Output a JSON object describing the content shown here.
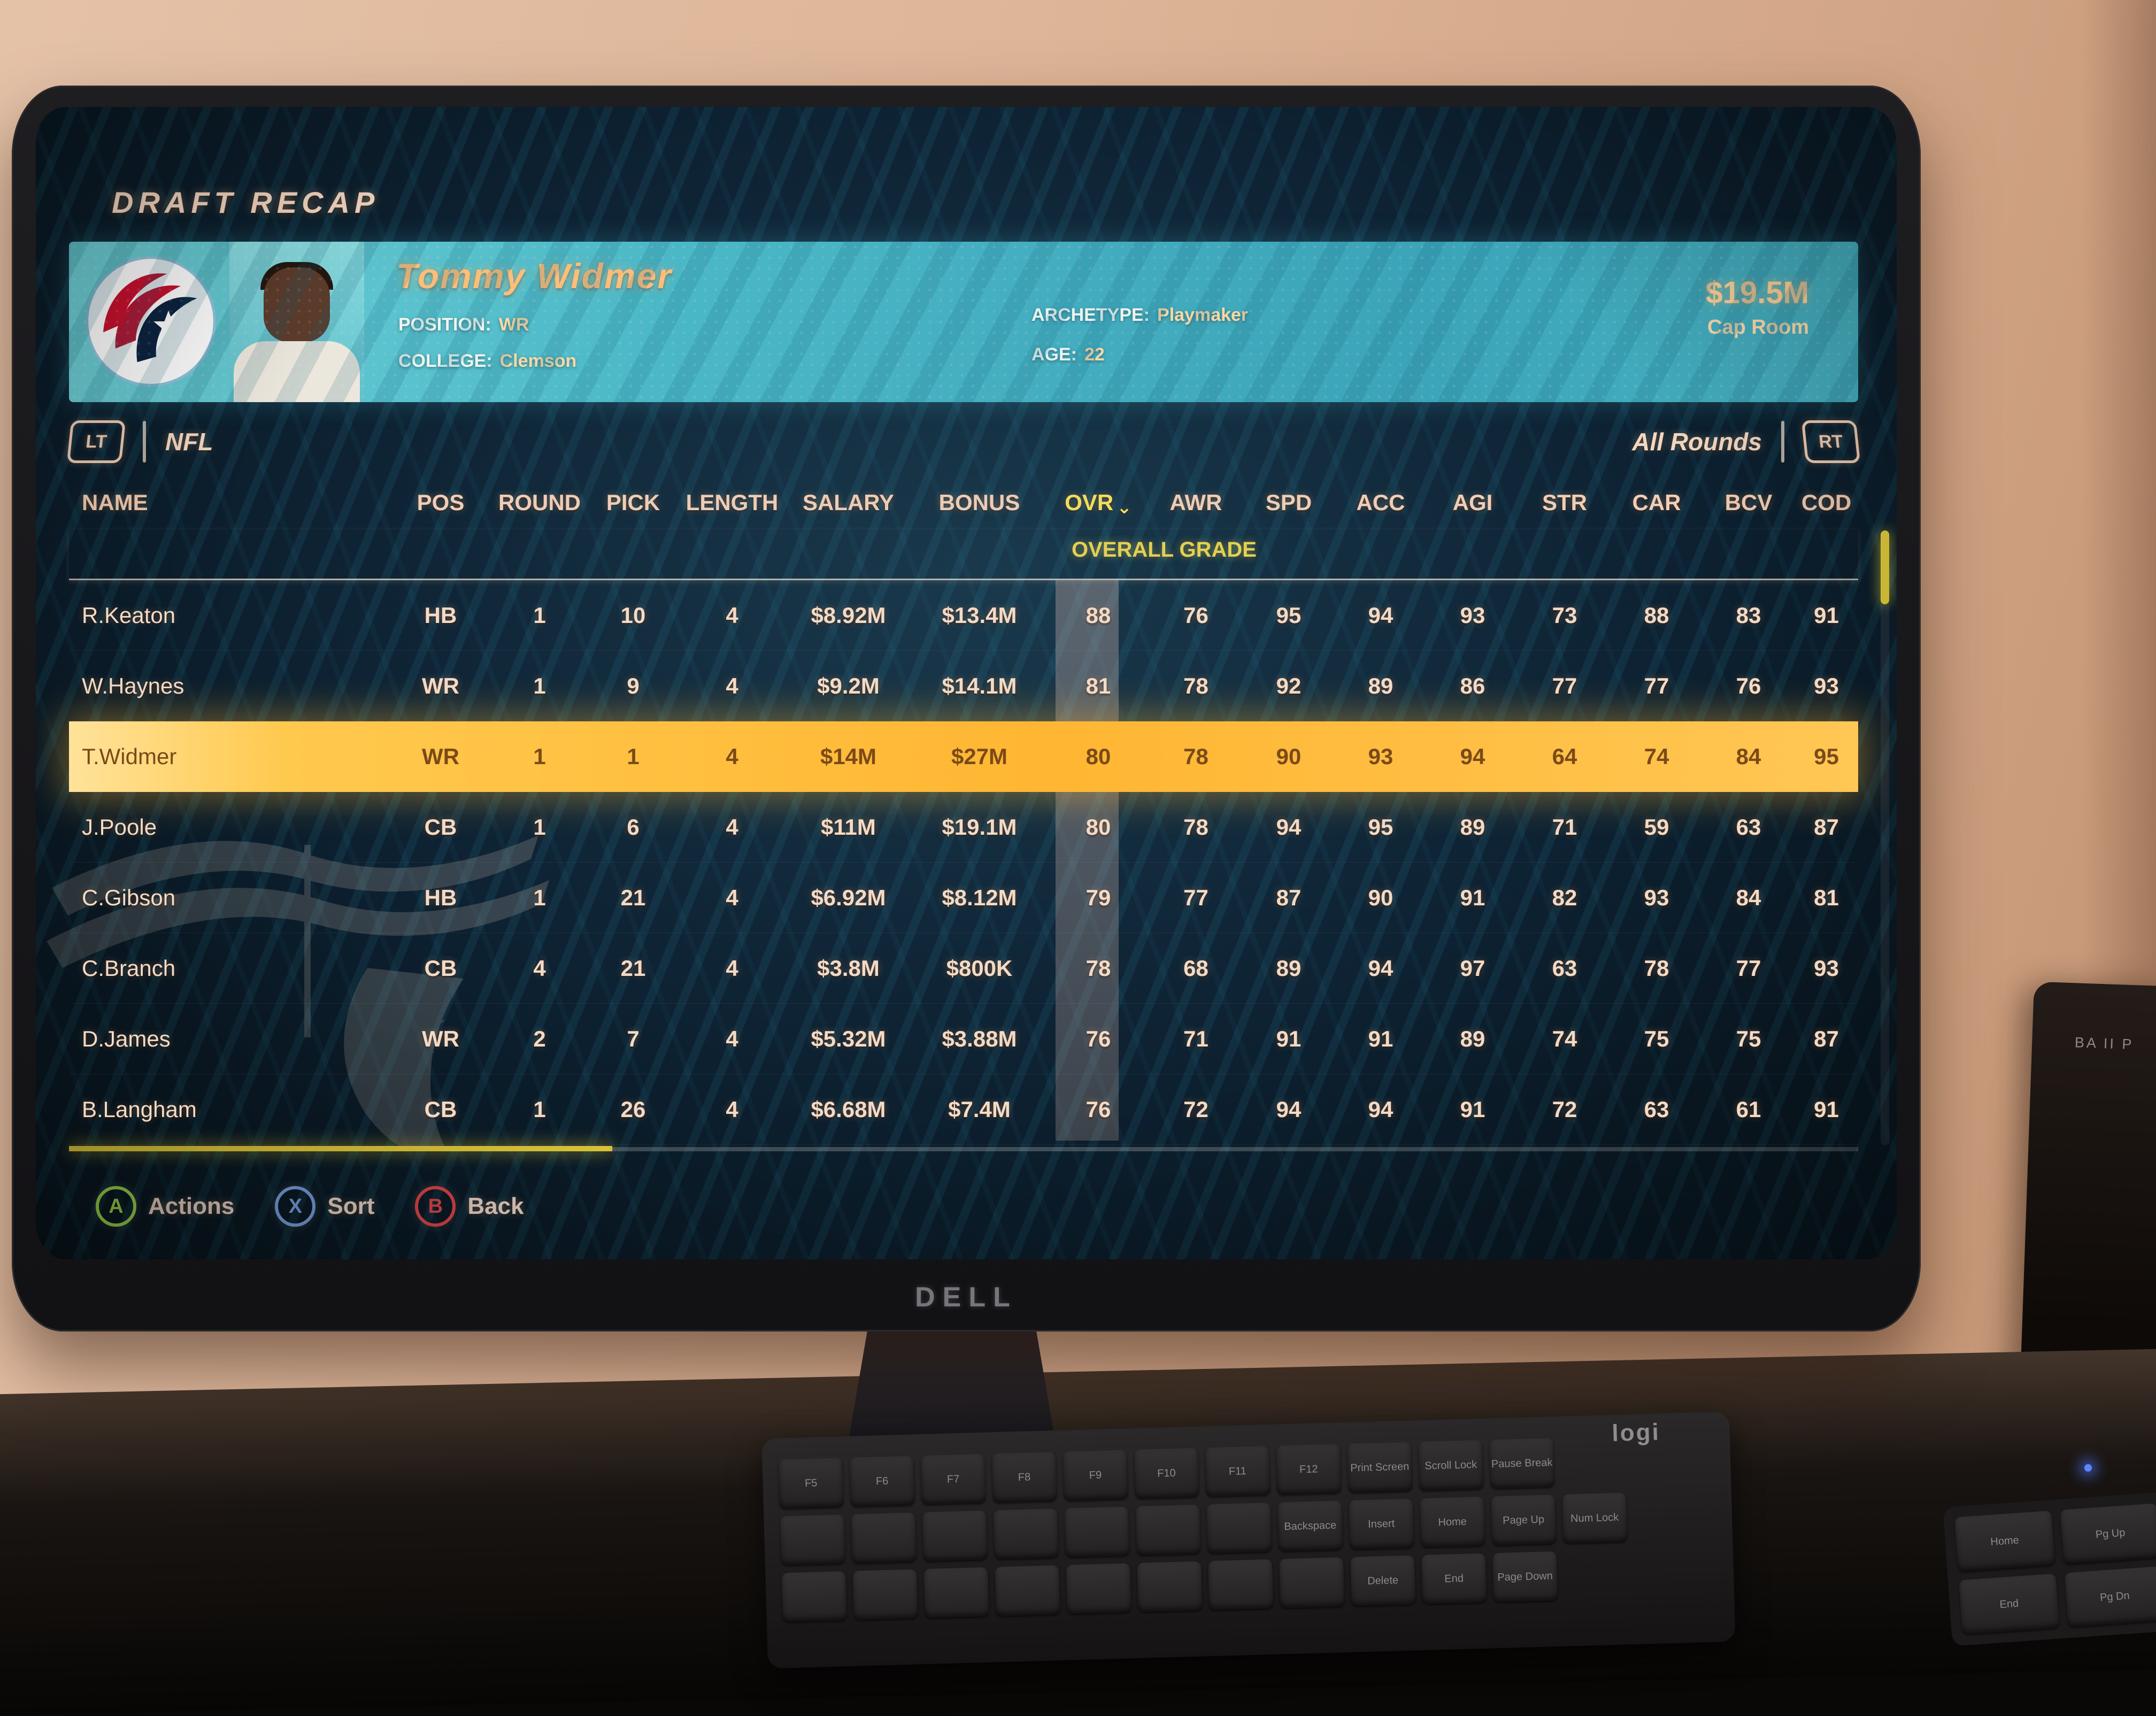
{
  "screen": {
    "title": "DRAFT RECAP",
    "player_banner": {
      "team_logo": "tennessee-titans-logo",
      "name": "Tommy Widmer",
      "position_label": "POSITION:",
      "position": "WR",
      "college_label": "COLLEGE:",
      "college": "Clemson",
      "archetype_label": "ARCHETYPE:",
      "archetype": "Playmaker",
      "age_label": "AGE:",
      "age": "22",
      "cap_room_value": "$19.5M",
      "cap_room_label": "Cap Room",
      "banner_color": "#49b7c6"
    },
    "tab_bar": {
      "left_bumper": "LT",
      "league_tab": "NFL",
      "rounds_filter": "All Rounds",
      "right_bumper": "RT"
    },
    "table": {
      "columns": [
        "NAME",
        "POS",
        "ROUND",
        "PICK",
        "LENGTH",
        "SALARY",
        "BONUS",
        "OVR",
        "AWR",
        "SPD",
        "ACC",
        "AGI",
        "STR",
        "CAR",
        "BCV",
        "COD"
      ],
      "sort_column": "OVR",
      "group_label": "OVERALL GRADE",
      "highlight_color": "#ffc043",
      "watermark": "new-england-patriots-logo",
      "rows": [
        {
          "name": "R.Keaton",
          "pos": "HB",
          "round": "1",
          "pick": "10",
          "length": "4",
          "salary": "$8.92M",
          "bonus": "$13.4M",
          "ovr": "88",
          "awr": "76",
          "spd": "95",
          "acc": "94",
          "agi": "93",
          "str": "73",
          "car": "88",
          "bcv": "83",
          "cod": "91",
          "selected": false
        },
        {
          "name": "W.Haynes",
          "pos": "WR",
          "round": "1",
          "pick": "9",
          "length": "4",
          "salary": "$9.2M",
          "bonus": "$14.1M",
          "ovr": "81",
          "awr": "78",
          "spd": "92",
          "acc": "89",
          "agi": "86",
          "str": "77",
          "car": "77",
          "bcv": "76",
          "cod": "93",
          "selected": false
        },
        {
          "name": "T.Widmer",
          "pos": "WR",
          "round": "1",
          "pick": "1",
          "length": "4",
          "salary": "$14M",
          "bonus": "$27M",
          "ovr": "80",
          "awr": "78",
          "spd": "90",
          "acc": "93",
          "agi": "94",
          "str": "64",
          "car": "74",
          "bcv": "84",
          "cod": "95",
          "selected": true
        },
        {
          "name": "J.Poole",
          "pos": "CB",
          "round": "1",
          "pick": "6",
          "length": "4",
          "salary": "$11M",
          "bonus": "$19.1M",
          "ovr": "80",
          "awr": "78",
          "spd": "94",
          "acc": "95",
          "agi": "89",
          "str": "71",
          "car": "59",
          "bcv": "63",
          "cod": "87",
          "selected": false
        },
        {
          "name": "C.Gibson",
          "pos": "HB",
          "round": "1",
          "pick": "21",
          "length": "4",
          "salary": "$6.92M",
          "bonus": "$8.12M",
          "ovr": "79",
          "awr": "77",
          "spd": "87",
          "acc": "90",
          "agi": "91",
          "str": "82",
          "car": "93",
          "bcv": "84",
          "cod": "81",
          "selected": false
        },
        {
          "name": "C.Branch",
          "pos": "CB",
          "round": "4",
          "pick": "21",
          "length": "4",
          "salary": "$3.8M",
          "bonus": "$800K",
          "ovr": "78",
          "awr": "68",
          "spd": "89",
          "acc": "94",
          "agi": "97",
          "str": "63",
          "car": "78",
          "bcv": "77",
          "cod": "93",
          "selected": false
        },
        {
          "name": "D.James",
          "pos": "WR",
          "round": "2",
          "pick": "7",
          "length": "4",
          "salary": "$5.32M",
          "bonus": "$3.88M",
          "ovr": "76",
          "awr": "71",
          "spd": "91",
          "acc": "91",
          "agi": "89",
          "str": "74",
          "car": "75",
          "bcv": "75",
          "cod": "87",
          "selected": false
        },
        {
          "name": "B.Langham",
          "pos": "CB",
          "round": "1",
          "pick": "26",
          "length": "4",
          "salary": "$6.68M",
          "bonus": "$7.4M",
          "ovr": "76",
          "awr": "72",
          "spd": "94",
          "acc": "94",
          "agi": "91",
          "str": "72",
          "car": "63",
          "bcv": "61",
          "cod": "91",
          "selected": false
        }
      ]
    },
    "button_hints": [
      {
        "button": "A",
        "label": "Actions",
        "color": "#a6e34d"
      },
      {
        "button": "X",
        "label": "Sort",
        "color": "#7fa9ea"
      },
      {
        "button": "B",
        "label": "Back",
        "color": "#e8474b"
      }
    ]
  },
  "monitor": {
    "brand": "DELL"
  },
  "desk": {
    "keyboard_brand": "logi",
    "keyboard_rows": [
      [
        "F5",
        "F6",
        "F7",
        "F8",
        "F9",
        "F10",
        "F11",
        "F12",
        "Print Screen",
        "Scroll Lock",
        "Pause Break"
      ],
      [
        "",
        "",
        "",
        "",
        "",
        "",
        "",
        "Backspace",
        "Insert",
        "Home",
        "Page Up",
        "Num Lock"
      ],
      [
        "",
        "",
        "",
        "",
        "",
        "",
        "",
        "",
        "Delete",
        "End",
        "Page Down"
      ]
    ],
    "corner_keys": [
      "Home",
      "Pg Up",
      "End",
      "Pg Dn"
    ],
    "side_object_label": "BA II P"
  }
}
